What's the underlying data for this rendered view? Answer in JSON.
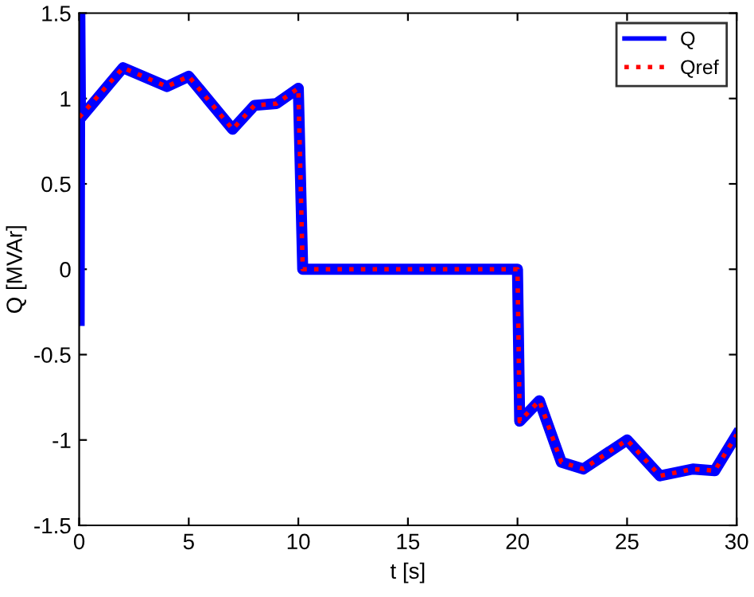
{
  "chart_data": {
    "type": "line",
    "xlabel": "t [s]",
    "ylabel": "Q [MVAr]",
    "xlim": [
      0,
      30
    ],
    "ylim": [
      -1.5,
      1.5
    ],
    "xticks": [
      0,
      5,
      10,
      15,
      20,
      25,
      30
    ],
    "yticks": [
      -1.5,
      -1,
      -0.5,
      0,
      0.5,
      1,
      1.5
    ],
    "grid": false,
    "legend": "top right",
    "series": [
      {
        "name": "Q",
        "color": "#0000ff",
        "line_style": "solid",
        "x": [
          0,
          0.03,
          0.06,
          0.1,
          2,
          4,
          5,
          7,
          8,
          9,
          10,
          10.2,
          20,
          20.1,
          21,
          22,
          23,
          25,
          26.5,
          28,
          29,
          30
        ],
        "values": [
          -0.3,
          1.5,
          0.9,
          0.89,
          1.18,
          1.07,
          1.13,
          0.82,
          0.96,
          0.97,
          1.06,
          0,
          0,
          -0.89,
          -0.77,
          -1.13,
          -1.17,
          -1.0,
          -1.21,
          -1.17,
          -1.18,
          -0.97
        ]
      },
      {
        "name": "Qref",
        "color": "#ff0000",
        "line_style": "dotted",
        "x": [
          0,
          2,
          4,
          5,
          7,
          8,
          9,
          10,
          10.2,
          20,
          20.1,
          21,
          22,
          23,
          25,
          26.5,
          28,
          29,
          30
        ],
        "values": [
          0.89,
          1.18,
          1.07,
          1.13,
          0.82,
          0.96,
          0.97,
          1.06,
          0,
          0,
          -0.89,
          -0.77,
          -1.13,
          -1.17,
          -1.0,
          -1.21,
          -1.17,
          -1.18,
          -0.97
        ]
      }
    ]
  }
}
